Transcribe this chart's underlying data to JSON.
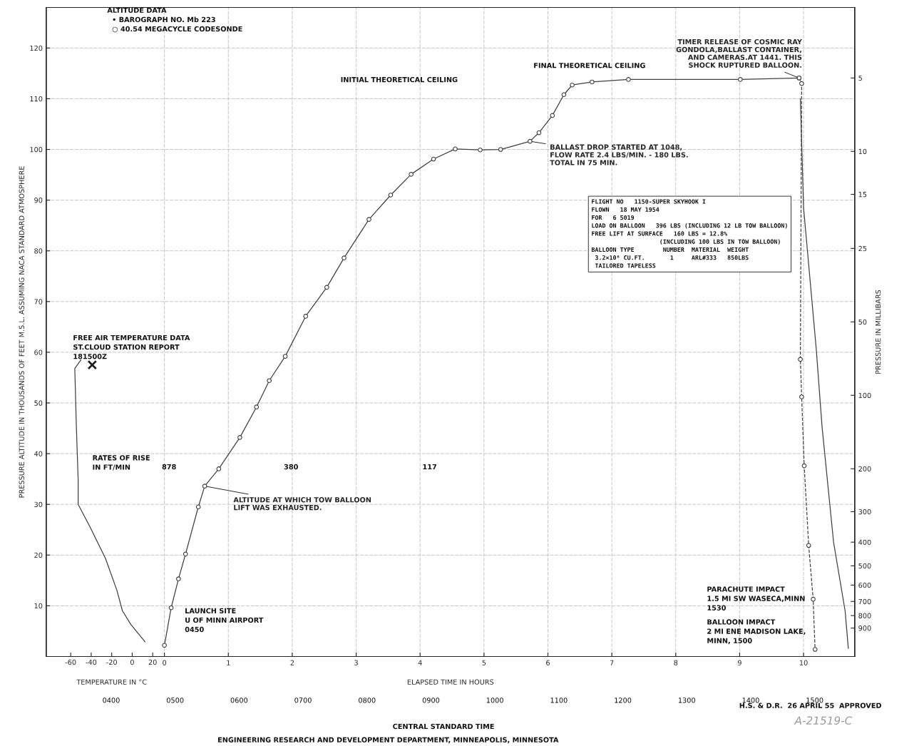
{
  "chart_data": {
    "type": "line",
    "xlabel": "ELAPSED TIME IN HOURS",
    "x2label": "TEMPERATURE IN °C",
    "ylabel": "PRESSURE ALTITUDE IN THOUSANDS OF FEET M.S.L. ASSUMING NACA STANDARD ATMOSPHERE",
    "y2label": "PRESSURE IN MILLIBARS",
    "xlim": [
      -1.85,
      10.8
    ],
    "xticks": [
      0,
      1,
      2,
      3,
      4,
      5,
      6,
      7,
      8,
      9,
      10
    ],
    "x2lim": [
      -83.9,
      704.9
    ],
    "x2ticks": [
      -60,
      -40,
      -20,
      0,
      20
    ],
    "ylim": [
      0,
      128
    ],
    "yticks": [
      10,
      20,
      30,
      40,
      50,
      60,
      70,
      80,
      90,
      100,
      110,
      120
    ],
    "y2lim": [
      1177,
      2.57
    ],
    "y2ticks": [
      5,
      10,
      15,
      25,
      50,
      100,
      200,
      300,
      400,
      500,
      600,
      700,
      800,
      900
    ],
    "log": "y2",
    "grid": true,
    "series": [
      {
        "color": "#404040",
        "marker": "circle",
        "line_style": "solid",
        "x": [
          0,
          0.105,
          0.22,
          0.33,
          0.53,
          0.63,
          0.85,
          1.18,
          1.44,
          1.64,
          1.89,
          2.21,
          2.54,
          2.81,
          3.2,
          3.54,
          3.86,
          4.21,
          4.55,
          4.94,
          5.26,
          5.72,
          5.86,
          6.07,
          6.25,
          6.38,
          6.69,
          7.26,
          9.01,
          9.93
        ],
        "values": [
          2.2,
          9.6,
          15.3,
          20.2,
          29.5,
          33.6,
          37,
          43.2,
          49.2,
          54.4,
          59.2,
          67.1,
          72.8,
          78.6,
          86.2,
          91,
          95.1,
          98.1,
          100.1,
          99.9,
          100,
          101.6,
          103.3,
          106.7,
          110.8,
          112.7,
          113.3,
          113.8,
          113.8,
          114.1
        ]
      },
      {
        "color": "#404040",
        "marker": "circle",
        "line_style": "dashed",
        "x": [
          9.93,
          9.97,
          9.95,
          9.97,
          10.01,
          10.08,
          10.15,
          10.18
        ],
        "values": [
          114.1,
          113,
          58.6,
          51.2,
          37.6,
          21.9,
          11.3,
          1.4
        ]
      },
      {
        "color": "#404040",
        "marker": "none",
        "line_style": "solid",
        "x": [
          9.95,
          10.0,
          10.2,
          10.29,
          10.47,
          10.65,
          10.7
        ],
        "values": [
          110,
          88.5,
          60.4,
          45.2,
          22.5,
          9,
          1.6
        ]
      },
      {
        "color": "#404040",
        "marker": "none",
        "line_style": "solid",
        "axis": "x2",
        "x": [
          12.5,
          -1.3,
          -9.5,
          -15,
          -26,
          -41,
          -52.7,
          -52.7,
          -54.5,
          -56,
          -50
        ],
        "values": [
          2.9,
          6.3,
          9,
          13.1,
          19.3,
          25.5,
          30,
          34.7,
          45.5,
          56.8,
          58.5
        ]
      },
      {
        "type": "scatter",
        "color": "#202020",
        "marker": "cross",
        "axis": "x2",
        "x": [
          -39
        ],
        "values": [
          57.5
        ]
      }
    ],
    "annotations": [
      "ALTITUDE DATA\n  • BAROGRAPH NO. Mb 223\n  ○ 40.54 MEGACYCLE CODESONDE",
      "INITIAL THEORETICAL CEILING",
      "FINAL THEORETICAL CEILING",
      {
        "text": "TIMER RELEASE OF COSMIC RAY\nGONDOLA,BALLAST CONTAINER,\nAND CAMERAS.AT 1441. THIS\nSHOCK RUPTURED BALLOON.",
        "x": 9.93,
        "y": 114.1
      },
      {
        "text": "BALLAST DROP STARTED AT 1048,\nFLOW RATE 2.4 LBS/MIN. - 180 LBS.\nTOTAL IN 75 MIN.",
        "x": 5.72,
        "y": 101.6
      },
      "FLIGHT NO   1150-SUPER SKYHOOK I\nFLOWN   18 MAY 1954\nFOR   6 5019\nLOAD ON BALLOON   396 LBS (INCLUDING 12 LB TOW BALLOON)\nFREE LIFT AT SURFACE   160 LBS = 12.8%\n                   (INCLUDING 100 LBS IN TOW BALLOON)\nBALLOON TYPE        NUMBER  MATERIAL  WEIGHT\n 3.2×10⁶ CU.FT.       1     ARL#333   850LBS\n TAILORED TAPELESS",
      "FREE AIR TEMPERATURE DATA\nST.CLOUD STATION REPORT\n181500Z",
      "RATES OF RISE\nIN FT/MIN",
      "878",
      "380",
      "117",
      {
        "text": "ALTITUDE AT WHICH TOW BALLOON\nLIFT WAS EXHAUSTED.",
        "x": 0.63,
        "y": 33.6
      },
      "LAUNCH SITE\nU OF MINN AIRPORT\n0450",
      "PARACHUTE IMPACT\n1.5 MI SW WASECA,MINN\n1530",
      "BALLOON IMPACT\n2 MI ENE MADISON LAKE,\nMINN, 1500",
      "H.S. & D.R.  26 APRIL 55  APPROVED",
      "ENGINEERING RESEARCH AND DEVELOPMENT DEPARTMENT, MINNEAPOLIS, MINNESOTA",
      "A-21519-C",
      "CENTRAL STANDARD TIME",
      "0400",
      "0500",
      "0600",
      "0700",
      "0800",
      "0900",
      "1000",
      "1100",
      "1200",
      "1300",
      "1400",
      "1500"
    ]
  }
}
